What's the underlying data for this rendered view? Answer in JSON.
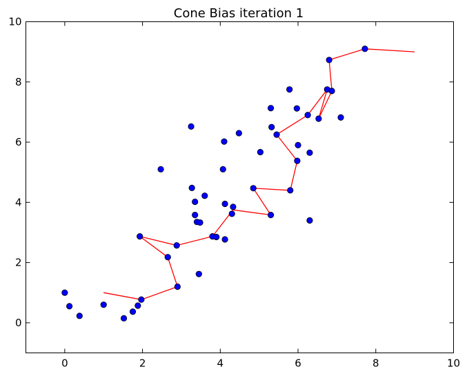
{
  "chart_data": {
    "type": "scatter",
    "title": "Cone Bias iteration 1",
    "xlabel": "",
    "ylabel": "",
    "xlim": [
      -1,
      10
    ],
    "ylim": [
      -1,
      10
    ],
    "x_ticks": [
      0,
      2,
      4,
      6,
      8,
      10
    ],
    "y_ticks": [
      0,
      2,
      4,
      6,
      8,
      10
    ],
    "x_tick_labels": [
      "0",
      "2",
      "4",
      "6",
      "8",
      "10"
    ],
    "y_tick_labels": [
      "0",
      "2",
      "4",
      "6",
      "8",
      "10"
    ],
    "grid": false,
    "series": [
      {
        "type": "scatter",
        "color": "#0000ff",
        "points": [
          [
            0.0,
            1.0
          ],
          [
            0.12,
            0.55
          ],
          [
            0.38,
            0.23
          ],
          [
            1.0,
            0.6
          ],
          [
            1.52,
            0.15
          ],
          [
            1.75,
            0.37
          ],
          [
            1.88,
            0.57
          ],
          [
            1.97,
            0.77
          ],
          [
            2.9,
            1.2
          ],
          [
            3.45,
            1.62
          ],
          [
            2.65,
            2.18
          ],
          [
            2.88,
            2.57
          ],
          [
            1.93,
            2.87
          ],
          [
            3.8,
            2.87
          ],
          [
            3.9,
            2.85
          ],
          [
            4.12,
            2.77
          ],
          [
            3.35,
            3.58
          ],
          [
            3.4,
            3.35
          ],
          [
            3.48,
            3.33
          ],
          [
            4.3,
            3.62
          ],
          [
            4.33,
            3.85
          ],
          [
            5.3,
            3.58
          ],
          [
            3.35,
            4.02
          ],
          [
            3.27,
            4.48
          ],
          [
            3.6,
            4.22
          ],
          [
            4.12,
            3.95
          ],
          [
            4.85,
            4.47
          ],
          [
            5.8,
            4.4
          ],
          [
            6.3,
            3.4
          ],
          [
            2.47,
            5.1
          ],
          [
            4.07,
            5.1
          ],
          [
            5.03,
            5.67
          ],
          [
            5.98,
            5.38
          ],
          [
            6.0,
            5.9
          ],
          [
            6.3,
            5.65
          ],
          [
            3.25,
            6.52
          ],
          [
            4.1,
            6.02
          ],
          [
            4.48,
            6.3
          ],
          [
            5.45,
            6.25
          ],
          [
            5.32,
            6.5
          ],
          [
            5.3,
            7.13
          ],
          [
            5.97,
            7.12
          ],
          [
            6.25,
            6.9
          ],
          [
            6.53,
            6.78
          ],
          [
            7.1,
            6.82
          ],
          [
            5.78,
            7.75
          ],
          [
            6.75,
            7.75
          ],
          [
            6.87,
            7.7
          ],
          [
            6.8,
            8.73
          ],
          [
            7.72,
            9.1
          ]
        ]
      },
      {
        "type": "line",
        "color": "#ff0000",
        "points": [
          [
            1.0,
            1.0
          ],
          [
            1.97,
            0.77
          ],
          [
            2.9,
            1.2
          ],
          [
            2.65,
            2.18
          ],
          [
            1.93,
            2.87
          ],
          [
            2.88,
            2.57
          ],
          [
            3.8,
            2.87
          ],
          [
            4.33,
            3.75
          ],
          [
            5.3,
            3.58
          ],
          [
            4.85,
            4.47
          ],
          [
            5.8,
            4.4
          ],
          [
            5.98,
            5.38
          ],
          [
            5.45,
            6.25
          ],
          [
            6.25,
            6.9
          ],
          [
            6.75,
            7.75
          ],
          [
            6.53,
            6.78
          ],
          [
            6.87,
            7.7
          ],
          [
            6.8,
            8.73
          ],
          [
            7.72,
            9.1
          ],
          [
            9.0,
            9.0
          ]
        ]
      }
    ]
  }
}
